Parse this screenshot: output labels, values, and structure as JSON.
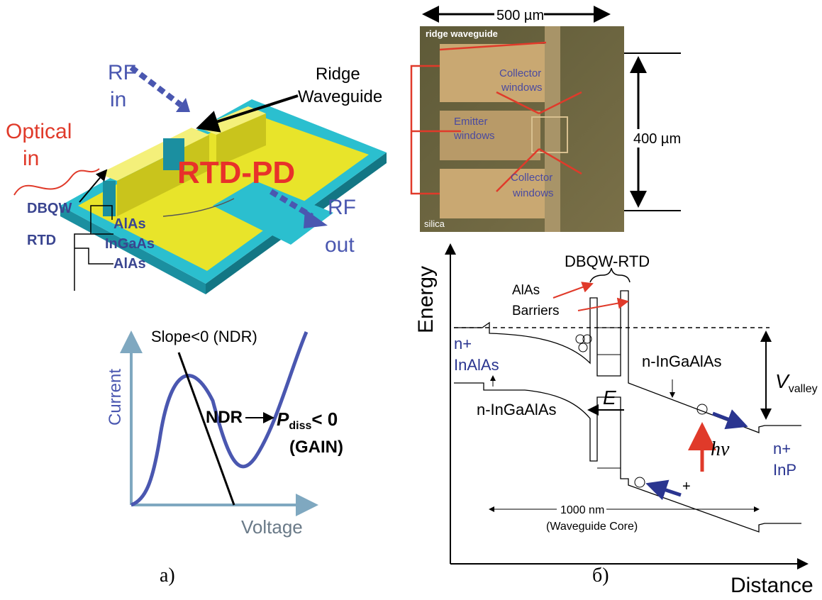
{
  "panel_a": {
    "device": {
      "rf_in": [
        "RF",
        "in"
      ],
      "ridge_waveguide": [
        "Ridge",
        "Waveguide"
      ],
      "optical_in": [
        "Optical",
        "in"
      ],
      "device_name": "RTD-PD",
      "dbqw_rtd": [
        "DBQW",
        "RTD"
      ],
      "layers": [
        "AlAs",
        "InGaAs",
        "AlAs"
      ],
      "rf_out": [
        "RF",
        "out"
      ]
    },
    "iv_curve": {
      "y_label": "Current",
      "x_label": "Voltage",
      "slope_label": "Slope<0 (NDR)",
      "ndr": "NDR",
      "power": "P",
      "power_sub": "diss",
      "power_rel": "< 0",
      "gain": "(GAIN)"
    },
    "caption": "а)"
  },
  "panel_b": {
    "micrograph": {
      "width": "500  µm",
      "height": "400  µm",
      "ridge_waveguide": "ridge waveguide",
      "collector_top": [
        "Collector",
        "windows"
      ],
      "emitter": [
        "Emitter",
        "windows"
      ],
      "collector_bottom": [
        "Collector",
        "windows"
      ],
      "substrate": "silica"
    },
    "band_diagram": {
      "y_label": "Energy",
      "x_label": "Distance",
      "rtd": "DBQW-RTD",
      "barriers": [
        "AlAs",
        "Barriers"
      ],
      "left_contact": [
        "n+",
        "InAlAs"
      ],
      "upper_layer": "n-InGaAlAs",
      "lower_layer": "n-InGaAlAs",
      "voltage": "V",
      "voltage_sub": "valley",
      "field": "E",
      "photon": "hν",
      "right_contact": [
        "n+",
        "InP"
      ],
      "core_length": "1000 nm",
      "core_label": "(Waveguide Core)",
      "hole_sign": "+"
    },
    "caption": "б)"
  }
}
